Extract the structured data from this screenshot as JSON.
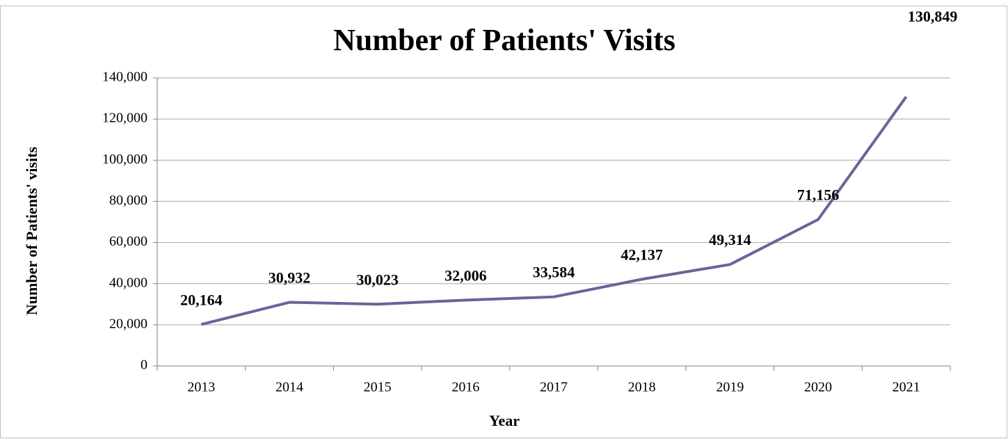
{
  "chart_data": {
    "type": "line",
    "title": "Number of Patients' Visits",
    "x_label": "Year",
    "y_label": "Number of Patients' visits",
    "categories": [
      "2013",
      "2014",
      "2015",
      "2016",
      "2017",
      "2018",
      "2019",
      "2020",
      "2021"
    ],
    "values": [
      20164,
      30932,
      30023,
      32006,
      33584,
      42137,
      49314,
      71156,
      130849
    ],
    "value_labels": [
      "20,164",
      "30,932",
      "30,023",
      "32,006",
      "33,584",
      "42,137",
      "49,314",
      "71,156",
      "130,849"
    ],
    "color": "#66669a",
    "ylim": [
      0,
      140000
    ],
    "yticks": [
      0,
      {
        "value": 20000,
        "label": "20,000"
      },
      {
        "value": 40000,
        "label": "40,000"
      },
      {
        "value": 60000,
        "label": "60,000"
      },
      {
        "value": 80000,
        "label": "80,000"
      },
      {
        "value": 100000,
        "label": "100,000"
      },
      {
        "value": 120000,
        "label": "120,000"
      },
      {
        "value": 140000,
        "label": "140,000"
      }
    ],
    "grid": true
  }
}
